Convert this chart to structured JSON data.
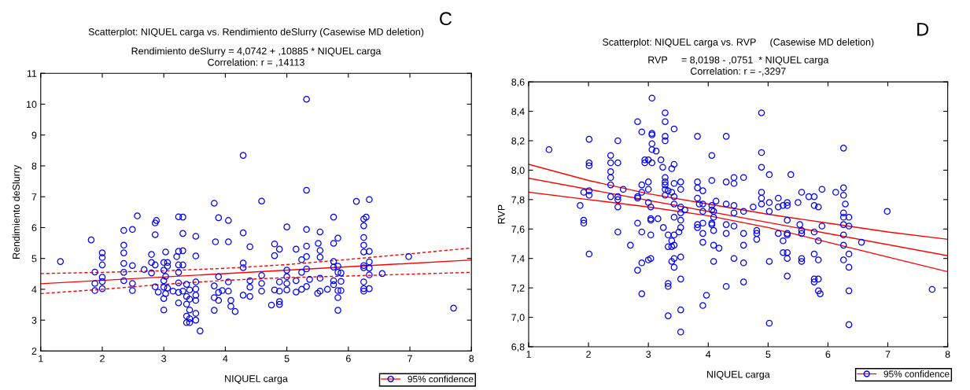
{
  "chart_data": [
    {
      "type": "scatter",
      "title": "Scatterplot: NIQUEL carga vs. Rendimiento deSlurry (Casewise MD deletion)",
      "subtitle": "Rendimiento deSlurry = 4,0742 + ,10885 * NIQUEL carga\nCorrelation: r = ,14113",
      "xlabel": "NIQUEL carga",
      "ylabel": "Rendimiento deSlurry",
      "annotations": [
        "C"
      ],
      "xlim": [
        1,
        8
      ],
      "ylim": [
        2,
        11
      ],
      "xticks": [
        1,
        2,
        3,
        4,
        5,
        6,
        7,
        8
      ],
      "yticks": [
        2,
        3,
        4,
        5,
        6,
        7,
        8,
        9,
        10,
        11
      ],
      "legend": "bottom right",
      "series": [
        {
          "name": "95% confidence",
          "color": "#0000ff",
          "marker": "circle",
          "x": [
            1.32,
            1.82,
            1.88,
            1.88,
            1.88,
            2.0,
            2.0,
            2.0,
            2.0,
            2.0,
            2.0,
            2.35,
            2.35,
            2.35,
            2.35,
            2.35,
            2.35,
            2.49,
            2.49,
            2.49,
            2.49,
            2.57,
            2.68,
            2.8,
            2.8,
            2.8,
            2.86,
            2.88,
            2.86,
            2.86,
            2.86,
            2.91,
            3.0,
            3.0,
            3.0,
            3.0,
            3.0,
            3.0,
            3.03,
            3.03,
            3.03,
            3.06,
            3.06,
            3.06,
            3.15,
            3.21,
            3.24,
            3.24,
            3.24,
            3.24,
            3.24,
            3.24,
            3.24,
            3.31,
            3.31,
            3.31,
            3.31,
            3.31,
            3.37,
            3.37,
            3.37,
            3.37,
            3.37,
            3.42,
            3.42,
            3.42,
            3.42,
            3.42,
            3.52,
            3.52,
            3.52,
            3.52,
            3.52,
            3.52,
            3.52,
            3.52,
            3.59,
            3.82,
            3.84,
            3.82,
            3.82,
            3.82,
            3.89,
            3.89,
            3.89,
            3.89,
            3.95,
            4.05,
            4.05,
            4.05,
            4.05,
            4.09,
            4.09,
            4.16,
            4.29,
            4.29,
            4.29,
            4.29,
            4.29,
            4.4,
            4.4,
            4.4,
            4.4,
            4.59,
            4.59,
            4.59,
            4.59,
            4.75,
            4.8,
            4.8,
            4.8,
            4.88,
            4.88,
            4.88,
            4.88,
            4.88,
            5.0,
            5.0,
            5.0,
            5.0,
            5.0,
            5.15,
            5.15,
            5.15,
            5.24,
            5.24,
            5.24,
            5.32,
            5.32,
            5.32,
            5.32,
            5.32,
            5.32,
            5.32,
            5.37,
            5.51,
            5.54,
            5.54,
            5.54,
            5.54,
            5.5,
            5.54,
            5.66,
            5.76,
            5.76,
            5.76,
            5.76,
            5.76,
            5.76,
            5.83,
            5.83,
            5.83,
            5.83,
            5.83,
            5.83,
            5.88,
            5.88,
            5.88,
            6.13,
            6.25,
            6.25,
            6.25,
            6.25,
            6.25,
            6.25,
            6.25,
            6.25,
            6.25,
            6.25,
            6.29,
            6.34,
            6.34,
            6.34,
            6.34,
            6.34,
            6.34,
            6.55,
            6.98,
            7.71
          ],
          "values": [
            4.9,
            5.6,
            4.56,
            4.19,
            3.96,
            5.18,
            5.03,
            4.79,
            4.39,
            4.25,
            4.02,
            5.91,
            5.43,
            5.18,
            4.84,
            4.55,
            4.28,
            5.94,
            4.77,
            4.19,
            3.96,
            6.38,
            4.64,
            5.13,
            4.87,
            4.53,
            6.15,
            6.23,
            5.77,
            4.79,
            4.08,
            3.91,
            4.87,
            4.62,
            4.28,
            4.07,
            3.7,
            3.33,
            5.21,
            4.42,
            3.86,
            4.87,
            4.75,
            4.04,
            3.94,
            5.06,
            6.35,
            5.23,
            4.79,
            4.55,
            4.21,
            3.9,
            3.56,
            6.34,
            5.81,
            5.25,
            4.79,
            3.94,
            4.16,
            3.77,
            3.52,
            3.13,
            2.92,
            3.98,
            3.68,
            3.33,
            3.05,
            2.92,
            5.72,
            5.08,
            4.24,
            4.01,
            3.81,
            3.64,
            3.22,
            3.0,
            2.65,
            6.79,
            5.54,
            4.11,
            3.73,
            3.32,
            6.32,
            4.41,
            3.9,
            3.64,
            3.96,
            6.23,
            5.54,
            4.24,
            3.94,
            3.64,
            3.45,
            3.28,
            8.34,
            5.83,
            4.85,
            4.7,
            3.81,
            5.38,
            4.28,
            4.07,
            3.77,
            6.86,
            4.45,
            4.19,
            3.94,
            3.49,
            5.47,
            5.09,
            3.98,
            5.3,
            3.6,
            3.51,
            4.24,
            3.94,
            6.02,
            4.62,
            4.41,
            4.19,
            3.98,
            5.3,
            4.28,
            3.91,
            4.96,
            4.55,
            4.0,
            10.16,
            7.21,
            5.94,
            5.4,
            5.06,
            4.66,
            4.09,
            4.32,
            5.49,
            5.26,
            5.04,
            4.36,
            3.94,
            3.87,
            5.86,
            4.0,
            6.34,
            5.49,
            4.9,
            4.72,
            4.28,
            4.15,
            5.66,
            4.75,
            4.55,
            3.96,
            3.73,
            3.32,
            4.53,
            4.26,
            3.96,
            6.85,
            6.28,
            6.06,
            5.68,
            5.43,
            5.21,
            4.77,
            4.7,
            4.24,
            4.02,
            3.94,
            6.34,
            6.91,
            5.23,
            4.89,
            4.69,
            4.47,
            4.02,
            4.51,
            5.06,
            3.39
          ]
        },
        {
          "type": "line",
          "color": "#ff0000",
          "line_style": "solid",
          "x": [
            1,
            8
          ],
          "values": [
            4.18,
            4.95
          ]
        },
        {
          "type": "line",
          "color": "#ff0000",
          "line_style": "dashed",
          "x": [
            1,
            2,
            3,
            4,
            5,
            6,
            7,
            8
          ],
          "values": [
            4.51,
            4.55,
            4.6,
            4.68,
            4.8,
            4.97,
            5.15,
            5.34
          ]
        },
        {
          "type": "line",
          "color": "#ff0000",
          "line_style": "dashed",
          "x": [
            1,
            2,
            3,
            4,
            5,
            6,
            7,
            8
          ],
          "values": [
            3.86,
            4.0,
            4.16,
            4.29,
            4.38,
            4.43,
            4.49,
            4.55
          ]
        }
      ]
    },
    {
      "type": "scatter",
      "title": "Scatterplot: NIQUEL carga vs. RVP     (Casewise MD deletion)",
      "subtitle": "RVP     = 8,0198 - ,0751  * NIQUEL carga\nCorrelation: r = -,3297",
      "xlabel": "NIQUEL carga",
      "ylabel": "RVP",
      "annotations": [
        "D"
      ],
      "xlim": [
        1,
        8
      ],
      "ylim": [
        6.8,
        8.6
      ],
      "xticks": [
        1,
        2,
        3,
        4,
        5,
        6,
        7,
        8
      ],
      "yticks": [
        {
          "value": 6.8,
          "label": "6,8"
        },
        {
          "value": 7.0,
          "label": "7,0"
        },
        {
          "value": 7.2,
          "label": "7,2"
        },
        {
          "value": 7.4,
          "label": "7,4"
        },
        {
          "value": 7.6,
          "label": "7,6"
        },
        {
          "value": 7.8,
          "label": "7,8"
        },
        {
          "value": 8.0,
          "label": "8,0"
        },
        {
          "value": 8.2,
          "label": "8,2"
        },
        {
          "value": 8.4,
          "label": "8,4"
        },
        {
          "value": 8.6,
          "label": "8,6"
        }
      ],
      "legend": "bottom right",
      "series": [
        {
          "name": "95% confidence",
          "color": "#0000ff",
          "marker": "circle",
          "x": [
            1.34,
            1.86,
            1.92,
            1.92,
            1.92,
            2.01,
            2.01,
            2.01,
            2.01,
            2.01,
            2.01,
            2.37,
            2.37,
            2.37,
            2.37,
            2.37,
            2.37,
            2.49,
            2.49,
            2.49,
            2.49,
            2.49,
            2.49,
            2.58,
            2.7,
            2.82,
            2.82,
            2.82,
            2.82,
            2.82,
            2.89,
            2.89,
            2.89,
            2.89,
            2.89,
            2.89,
            2.94,
            3.0,
            2.94,
            3.0,
            3.0,
            3.0,
            3.0,
            3.04,
            3.04,
            3.04,
            3.04,
            3.04,
            3.06,
            3.06,
            3.06,
            3.06,
            3.06,
            3.06,
            3.13,
            3.16,
            3.21,
            3.24,
            3.25,
            3.28,
            3.28,
            3.28,
            3.28,
            3.28,
            3.28,
            3.28,
            3.28,
            3.28,
            3.33,
            3.33,
            3.33,
            3.33,
            3.33,
            3.33,
            3.39,
            3.39,
            3.39,
            3.39,
            3.39,
            3.43,
            3.43,
            3.43,
            3.43,
            3.43,
            3.43,
            3.43,
            3.43,
            3.43,
            3.43,
            3.54,
            3.54,
            3.54,
            3.54,
            3.54,
            3.54,
            3.54,
            3.54,
            3.54,
            3.54,
            3.61,
            3.51,
            3.82,
            3.82,
            3.82,
            3.82,
            3.82,
            3.82,
            3.85,
            3.91,
            3.91,
            3.91,
            3.91,
            3.91,
            3.91,
            3.91,
            3.97,
            4.06,
            4.06,
            4.06,
            4.06,
            4.06,
            4.06,
            4.13,
            4.09,
            4.09,
            4.09,
            4.09,
            4.09,
            4.18,
            4.3,
            4.3,
            4.3,
            4.3,
            4.3,
            4.3,
            4.43,
            4.43,
            4.43,
            4.43,
            4.43,
            4.43,
            4.59,
            4.59,
            4.59,
            4.59,
            4.59,
            4.59,
            4.75,
            4.81,
            4.81,
            4.81,
            4.89,
            4.89,
            4.89,
            4.89,
            4.89,
            4.89,
            5.02,
            5.02,
            5.02,
            5.02,
            5.02,
            5.17,
            5.17,
            5.17,
            5.25,
            5.25,
            5.25,
            5.32,
            5.32,
            5.32,
            5.32,
            5.32,
            5.32,
            5.32,
            5.32,
            5.38,
            5.5,
            5.53,
            5.56,
            5.56,
            5.56,
            5.56,
            5.56,
            5.68,
            5.77,
            5.77,
            5.77,
            5.77,
            5.77,
            5.77,
            5.84,
            5.84,
            5.84,
            5.84,
            5.84,
            5.87,
            5.9,
            5.9,
            6.13,
            6.26,
            6.26,
            6.26,
            6.26,
            6.26,
            6.26,
            6.26,
            6.26,
            6.26,
            6.29,
            6.35,
            6.35,
            6.35,
            6.35,
            6.35,
            6.35,
            6.56,
            6.99,
            7.74
          ],
          "values": [
            8.14,
            7.76,
            7.85,
            7.66,
            7.64,
            8.21,
            8.05,
            8.03,
            7.86,
            7.83,
            7.43,
            8.1,
            8.05,
            7.99,
            7.95,
            7.9,
            7.82,
            8.2,
            8.05,
            7.82,
            7.8,
            7.75,
            7.58,
            7.87,
            7.49,
            8.33,
            7.82,
            7.81,
            7.64,
            7.32,
            8.26,
            7.9,
            7.85,
            7.58,
            7.37,
            7.16,
            8.07,
            8.07,
            8.05,
            7.92,
            7.87,
            7.78,
            7.39,
            7.75,
            7.67,
            7.66,
            7.56,
            7.4,
            8.49,
            8.25,
            8.24,
            8.18,
            8.14,
            8.05,
            8.13,
            7.67,
            8.07,
            8.02,
            7.61,
            8.39,
            8.33,
            8.23,
            8.2,
            7.95,
            7.92,
            7.9,
            7.87,
            7.83,
            7.86,
            7.56,
            7.48,
            7.23,
            7.21,
            7.01,
            8.01,
            7.85,
            7.52,
            7.48,
            7.38,
            8.28,
            8.04,
            7.91,
            7.82,
            7.77,
            7.68,
            7.56,
            7.49,
            7.4,
            7.34,
            7.92,
            7.87,
            7.75,
            7.71,
            7.66,
            7.61,
            7.41,
            7.26,
            7.05,
            6.9,
            7.73,
            7.58,
            8.23,
            7.92,
            7.88,
            7.81,
            7.63,
            7.61,
            7.77,
            7.86,
            7.77,
            7.72,
            7.64,
            7.57,
            7.51,
            7.08,
            7.15,
            8.1,
            7.93,
            7.76,
            7.73,
            7.64,
            7.63,
            7.79,
            7.72,
            7.68,
            7.59,
            7.49,
            7.38,
            7.47,
            8.23,
            7.92,
            7.77,
            7.63,
            7.57,
            7.21,
            7.95,
            7.91,
            7.76,
            7.71,
            7.62,
            7.4,
            7.95,
            7.72,
            7.57,
            7.49,
            7.37,
            7.24,
            7.75,
            7.59,
            7.57,
            7.53,
            8.39,
            8.12,
            8.02,
            7.85,
            7.81,
            7.77,
            7.97,
            7.78,
            7.72,
            7.38,
            6.96,
            7.81,
            7.75,
            7.57,
            7.76,
            7.52,
            7.44,
            7.78,
            7.76,
            7.66,
            7.57,
            7.56,
            7.44,
            7.4,
            7.28,
            7.97,
            7.78,
            7.63,
            7.85,
            7.59,
            7.57,
            7.4,
            7.38,
            7.82,
            7.82,
            7.76,
            7.58,
            7.43,
            7.26,
            7.24,
            7.75,
            7.52,
            7.39,
            7.26,
            7.18,
            7.16,
            7.87,
            7.62,
            7.85,
            8.15,
            7.88,
            7.83,
            7.71,
            7.68,
            7.63,
            7.56,
            7.49,
            7.39,
            7.77,
            7.68,
            7.62,
            7.43,
            7.34,
            7.18,
            6.95,
            7.51,
            7.72,
            7.19
          ]
        },
        {
          "type": "line",
          "color": "#ff0000",
          "line_style": "solid",
          "x": [
            1,
            8
          ],
          "values": [
            7.945,
            7.419
          ]
        },
        {
          "type": "line",
          "color": "#ff0000",
          "line_style": "solid",
          "x": [
            1,
            2,
            3,
            4,
            5,
            6,
            7,
            8
          ],
          "values": [
            8.04,
            7.93,
            7.84,
            7.77,
            7.7,
            7.64,
            7.58,
            7.53
          ]
        },
        {
          "type": "line",
          "color": "#ff0000",
          "line_style": "solid",
          "x": [
            1,
            2,
            3,
            4,
            5,
            6,
            7,
            8
          ],
          "values": [
            7.85,
            7.8,
            7.75,
            7.69,
            7.61,
            7.51,
            7.41,
            7.31
          ]
        }
      ]
    }
  ]
}
